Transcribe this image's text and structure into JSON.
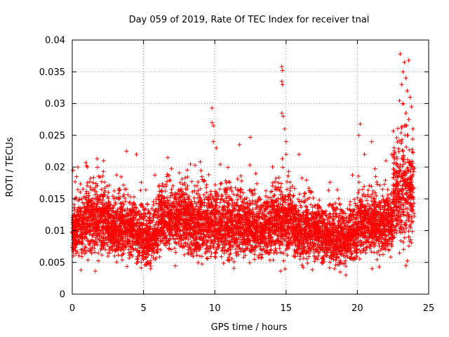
{
  "chart_data": {
    "type": "scatter",
    "title": "Day 059 of 2019, Rate Of TEC Index for receiver tnal",
    "xlabel": "GPS time / hours",
    "ylabel": "ROTI / TECUs",
    "xlim": [
      0,
      25
    ],
    "ylim": [
      0,
      0.04
    ],
    "xticks": [
      "0",
      "5",
      "10",
      "15",
      "20",
      "25"
    ],
    "yticks": [
      "0",
      "0.005",
      "0.01",
      "0.015",
      "0.02",
      "0.025",
      "0.03",
      "0.035",
      "0.04"
    ],
    "grid": true,
    "marker": "+",
    "color": "#ff0000",
    "series": [
      {
        "name": "ROTI",
        "profile": [
          {
            "t0": 0.0,
            "t1": 1.0,
            "base": 0.0105,
            "spread": 0.004
          },
          {
            "t0": 1.0,
            "t1": 2.5,
            "base": 0.0115,
            "spread": 0.0045
          },
          {
            "t0": 2.5,
            "t1": 4.5,
            "base": 0.0105,
            "spread": 0.004
          },
          {
            "t0": 4.5,
            "t1": 6.0,
            "base": 0.009,
            "spread": 0.0035
          },
          {
            "t0": 6.0,
            "t1": 8.0,
            "base": 0.012,
            "spread": 0.0045
          },
          {
            "t0": 8.0,
            "t1": 10.0,
            "base": 0.011,
            "spread": 0.0045
          },
          {
            "t0": 10.0,
            "t1": 12.0,
            "base": 0.011,
            "spread": 0.0045
          },
          {
            "t0": 12.0,
            "t1": 14.0,
            "base": 0.0105,
            "spread": 0.004
          },
          {
            "t0": 14.0,
            "t1": 15.5,
            "base": 0.0115,
            "spread": 0.0045
          },
          {
            "t0": 15.5,
            "t1": 17.5,
            "base": 0.01,
            "spread": 0.004
          },
          {
            "t0": 17.5,
            "t1": 20.0,
            "base": 0.009,
            "spread": 0.0035
          },
          {
            "t0": 20.0,
            "t1": 22.5,
            "base": 0.011,
            "spread": 0.004
          },
          {
            "t0": 22.5,
            "t1": 24.0,
            "base": 0.016,
            "spread": 0.007
          }
        ],
        "outliers": [
          {
            "x": 0.05,
            "y": 0.0195
          },
          {
            "x": 0.4,
            "y": 0.02
          },
          {
            "x": 1.0,
            "y": 0.0202
          },
          {
            "x": 2.2,
            "y": 0.021
          },
          {
            "x": 3.8,
            "y": 0.0225
          },
          {
            "x": 4.5,
            "y": 0.022
          },
          {
            "x": 6.7,
            "y": 0.0215
          },
          {
            "x": 9.8,
            "y": 0.0293
          },
          {
            "x": 9.8,
            "y": 0.027
          },
          {
            "x": 9.9,
            "y": 0.0265
          },
          {
            "x": 9.9,
            "y": 0.024
          },
          {
            "x": 10.1,
            "y": 0.023
          },
          {
            "x": 12.5,
            "y": 0.0247
          },
          {
            "x": 14.7,
            "y": 0.0358
          },
          {
            "x": 14.75,
            "y": 0.0352
          },
          {
            "x": 14.7,
            "y": 0.0335
          },
          {
            "x": 14.75,
            "y": 0.033
          },
          {
            "x": 14.7,
            "y": 0.0285
          },
          {
            "x": 14.8,
            "y": 0.028
          },
          {
            "x": 14.9,
            "y": 0.026
          },
          {
            "x": 15.0,
            "y": 0.024
          },
          {
            "x": 15.0,
            "y": 0.022
          },
          {
            "x": 15.9,
            "y": 0.022
          },
          {
            "x": 20.2,
            "y": 0.0268
          },
          {
            "x": 20.1,
            "y": 0.025
          },
          {
            "x": 20.5,
            "y": 0.022
          },
          {
            "x": 21.0,
            "y": 0.024
          },
          {
            "x": 22.0,
            "y": 0.021
          },
          {
            "x": 22.4,
            "y": 0.022
          },
          {
            "x": 23.0,
            "y": 0.0378
          },
          {
            "x": 23.3,
            "y": 0.0365
          },
          {
            "x": 23.6,
            "y": 0.0368
          },
          {
            "x": 23.2,
            "y": 0.035
          },
          {
            "x": 23.4,
            "y": 0.034
          },
          {
            "x": 23.1,
            "y": 0.033
          },
          {
            "x": 23.5,
            "y": 0.032
          },
          {
            "x": 23.7,
            "y": 0.031
          },
          {
            "x": 23.2,
            "y": 0.03
          },
          {
            "x": 23.8,
            "y": 0.0295
          },
          {
            "x": 23.4,
            "y": 0.0285
          },
          {
            "x": 23.6,
            "y": 0.0275
          },
          {
            "x": 23.3,
            "y": 0.0265
          },
          {
            "x": 23.9,
            "y": 0.026
          },
          {
            "x": 23.5,
            "y": 0.025
          },
          {
            "x": 18.8,
            "y": 0.0035
          },
          {
            "x": 19.2,
            "y": 0.003
          },
          {
            "x": 18.4,
            "y": 0.004
          },
          {
            "x": 5.5,
            "y": 0.004
          },
          {
            "x": 16.2,
            "y": 0.0042
          },
          {
            "x": 23.4,
            "y": 0.0045
          }
        ]
      }
    ]
  }
}
